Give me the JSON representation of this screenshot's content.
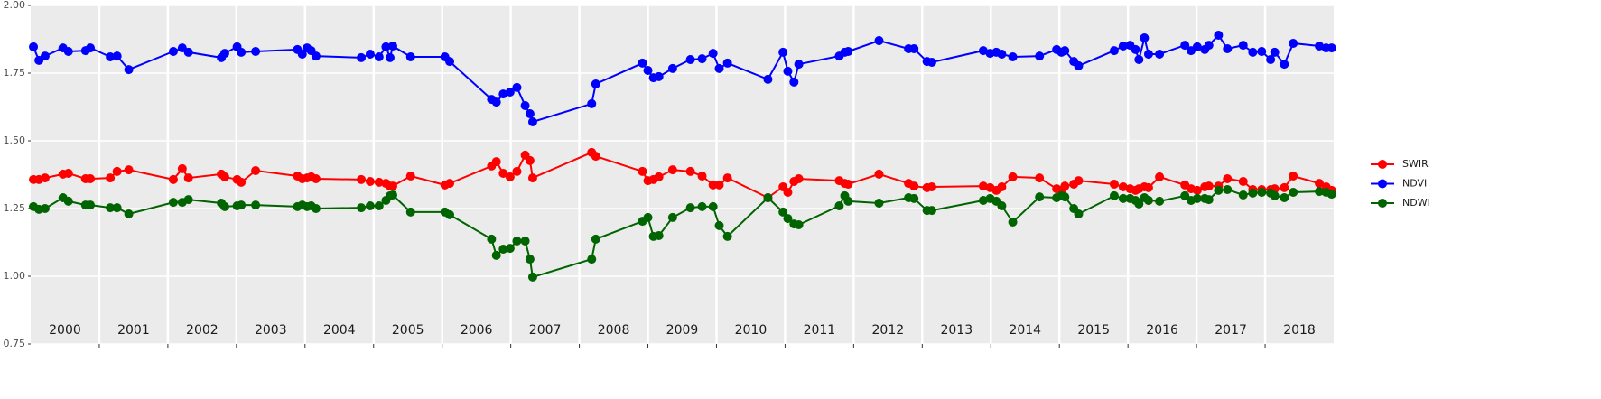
{
  "chart_data": {
    "type": "line",
    "x": [
      2000.04,
      2000.12,
      2000.21,
      2000.47,
      2000.55,
      2000.8,
      2000.87,
      2001.16,
      2001.26,
      2001.43,
      2002.08,
      2002.21,
      2002.3,
      2002.78,
      2002.83,
      2003.01,
      2003.07,
      2003.28,
      2003.89,
      2003.96,
      2004.03,
      2004.09,
      2004.16,
      2004.82,
      2004.95,
      2005.08,
      2005.18,
      2005.24,
      2005.28,
      2005.54,
      2006.04,
      2006.11,
      2006.72,
      2006.79,
      2006.89,
      2006.99,
      2007.09,
      2007.21,
      2007.28,
      2007.32,
      2008.18,
      2008.24,
      2008.92,
      2009.0,
      2009.08,
      2009.16,
      2009.36,
      2009.62,
      2009.79,
      2009.95,
      2010.04,
      2010.16,
      2010.75,
      2010.97,
      2011.04,
      2011.13,
      2011.2,
      2011.79,
      2011.87,
      2011.92,
      2012.37,
      2012.8,
      2012.88,
      2013.07,
      2013.14,
      2013.89,
      2013.99,
      2014.08,
      2014.16,
      2014.32,
      2014.71,
      2014.96,
      2015.03,
      2015.08,
      2015.21,
      2015.28,
      2015.8,
      2015.93,
      2016.03,
      2016.11,
      2016.16,
      2016.24,
      2016.3,
      2016.46,
      2016.83,
      2016.92,
      2017.01,
      2017.12,
      2017.18,
      2017.32,
      2017.45,
      2017.68,
      2017.82,
      2017.95,
      2018.08,
      2018.14,
      2018.28,
      2018.41,
      2018.79,
      2018.89,
      2018.97
    ],
    "series": [
      {
        "name": "SWIR",
        "color": "#ff0000",
        "values": [
          1.357,
          1.357,
          1.363,
          1.377,
          1.38,
          1.36,
          1.36,
          1.363,
          1.387,
          1.393,
          1.357,
          1.397,
          1.363,
          1.377,
          1.367,
          1.357,
          1.347,
          1.39,
          1.37,
          1.36,
          1.363,
          1.367,
          1.36,
          1.357,
          1.35,
          1.347,
          1.343,
          1.333,
          1.333,
          1.37,
          1.337,
          1.343,
          1.407,
          1.423,
          1.38,
          1.367,
          1.387,
          1.447,
          1.427,
          1.363,
          1.457,
          1.443,
          1.387,
          1.353,
          1.357,
          1.367,
          1.393,
          1.387,
          1.37,
          1.337,
          1.337,
          1.363,
          1.29,
          1.33,
          1.31,
          1.35,
          1.36,
          1.353,
          1.343,
          1.34,
          1.377,
          1.343,
          1.333,
          1.327,
          1.33,
          1.333,
          1.327,
          1.317,
          1.33,
          1.367,
          1.363,
          1.323,
          1.317,
          1.333,
          1.34,
          1.353,
          1.34,
          1.33,
          1.323,
          1.317,
          1.323,
          1.33,
          1.327,
          1.367,
          1.337,
          1.323,
          1.317,
          1.33,
          1.333,
          1.333,
          1.36,
          1.35,
          1.32,
          1.32,
          1.32,
          1.323,
          1.327,
          1.37,
          1.343,
          1.33,
          1.317
        ]
      },
      {
        "name": "NDVI",
        "color": "#0000ff",
        "values": [
          1.847,
          1.797,
          1.813,
          1.843,
          1.83,
          1.833,
          1.843,
          1.81,
          1.813,
          1.763,
          1.83,
          1.843,
          1.827,
          1.807,
          1.823,
          1.847,
          1.827,
          1.83,
          1.837,
          1.82,
          1.843,
          1.833,
          1.813,
          1.807,
          1.82,
          1.81,
          1.847,
          1.807,
          1.85,
          1.81,
          1.81,
          1.793,
          1.653,
          1.643,
          1.673,
          1.68,
          1.697,
          1.63,
          1.6,
          1.57,
          1.637,
          1.71,
          1.787,
          1.76,
          1.733,
          1.737,
          1.767,
          1.8,
          1.803,
          1.823,
          1.767,
          1.787,
          1.727,
          1.827,
          1.757,
          1.717,
          1.783,
          1.813,
          1.827,
          1.83,
          1.87,
          1.84,
          1.84,
          1.793,
          1.79,
          1.833,
          1.823,
          1.827,
          1.82,
          1.81,
          1.813,
          1.837,
          1.827,
          1.833,
          1.793,
          1.777,
          1.833,
          1.85,
          1.853,
          1.837,
          1.8,
          1.88,
          1.82,
          1.82,
          1.853,
          1.833,
          1.847,
          1.837,
          1.853,
          1.89,
          1.84,
          1.853,
          1.827,
          1.83,
          1.8,
          1.827,
          1.783,
          1.86,
          1.85,
          1.843,
          1.843
        ]
      },
      {
        "name": "NDWI",
        "color": "#006400",
        "values": [
          1.257,
          1.247,
          1.25,
          1.29,
          1.277,
          1.263,
          1.263,
          1.253,
          1.253,
          1.23,
          1.273,
          1.273,
          1.283,
          1.27,
          1.257,
          1.26,
          1.263,
          1.263,
          1.257,
          1.263,
          1.257,
          1.26,
          1.25,
          1.253,
          1.26,
          1.26,
          1.28,
          1.297,
          1.3,
          1.237,
          1.237,
          1.227,
          1.137,
          1.077,
          1.1,
          1.103,
          1.13,
          1.13,
          1.063,
          0.997,
          1.063,
          1.137,
          1.203,
          1.217,
          1.147,
          1.15,
          1.217,
          1.253,
          1.257,
          1.257,
          1.187,
          1.147,
          1.29,
          1.237,
          1.213,
          1.193,
          1.19,
          1.26,
          1.297,
          1.277,
          1.27,
          1.29,
          1.287,
          1.243,
          1.243,
          1.28,
          1.287,
          1.277,
          1.26,
          1.2,
          1.293,
          1.29,
          1.297,
          1.293,
          1.25,
          1.23,
          1.297,
          1.287,
          1.287,
          1.28,
          1.267,
          1.29,
          1.28,
          1.277,
          1.297,
          1.28,
          1.287,
          1.287,
          1.283,
          1.317,
          1.32,
          1.3,
          1.307,
          1.31,
          1.307,
          1.297,
          1.29,
          1.31,
          1.313,
          1.31,
          1.303
        ]
      }
    ],
    "xlim": [
      2000,
      2019
    ],
    "xticks": [
      {
        "value": 2000.5,
        "label": "2000"
      },
      {
        "value": 2001.5,
        "label": "2001"
      },
      {
        "value": 2002.5,
        "label": "2002"
      },
      {
        "value": 2003.5,
        "label": "2003"
      },
      {
        "value": 2004.5,
        "label": "2004"
      },
      {
        "value": 2005.5,
        "label": "2005"
      },
      {
        "value": 2006.5,
        "label": "2006"
      },
      {
        "value": 2007.5,
        "label": "2007"
      },
      {
        "value": 2008.5,
        "label": "2008"
      },
      {
        "value": 2009.5,
        "label": "2009"
      },
      {
        "value": 2010.5,
        "label": "2010"
      },
      {
        "value": 2011.5,
        "label": "2011"
      },
      {
        "value": 2012.5,
        "label": "2012"
      },
      {
        "value": 2013.5,
        "label": "2013"
      },
      {
        "value": 2014.5,
        "label": "2014"
      },
      {
        "value": 2015.5,
        "label": "2015"
      },
      {
        "value": 2016.5,
        "label": "2016"
      },
      {
        "value": 2017.5,
        "label": "2017"
      },
      {
        "value": 2018.5,
        "label": "2018"
      }
    ],
    "xgrid": [
      2001,
      2002,
      2003,
      2004,
      2005,
      2006,
      2007,
      2008,
      2009,
      2010,
      2011,
      2012,
      2013,
      2014,
      2015,
      2016,
      2017,
      2018
    ],
    "ylim": [
      0.75,
      2.0
    ],
    "yticks": [
      0.75,
      {
        "value": 1,
        "label": "1.00"
      },
      1.25,
      {
        "value": 1.5,
        "label": "1.50"
      },
      1.75,
      {
        "value": 2,
        "label": "2.00"
      }
    ],
    "grid": true,
    "legend": "right"
  }
}
